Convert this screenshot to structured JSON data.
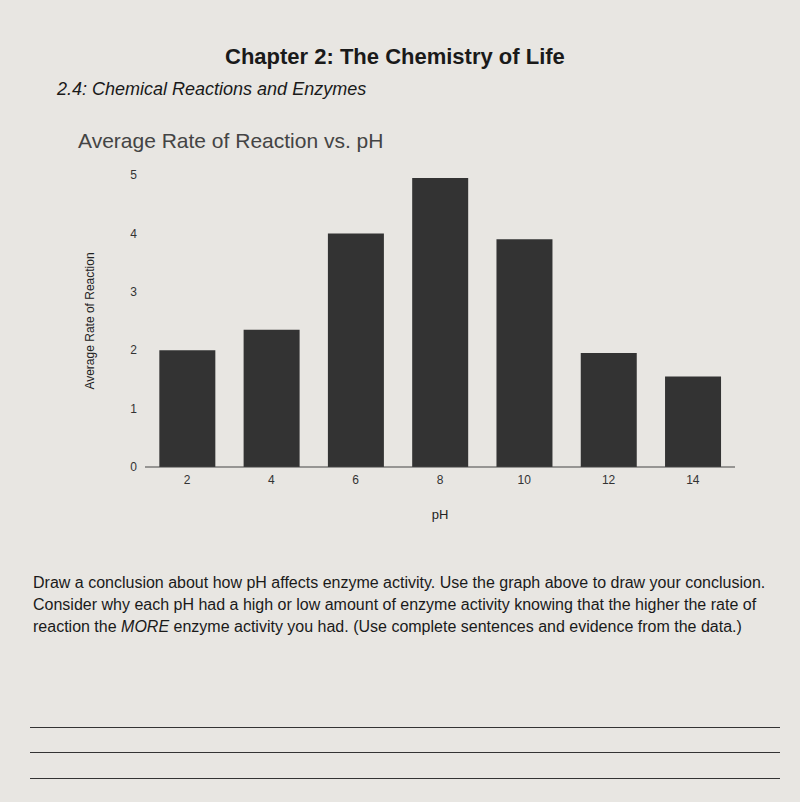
{
  "header": {
    "chapter": "Chapter 2: The Chemistry of Life",
    "section": "2.4: Chemical Reactions and Enzymes"
  },
  "chart_data": {
    "type": "bar",
    "title": "Average Rate of Reaction vs. pH",
    "x_label": "pH",
    "y_label": "Average Rate of Reaction",
    "categories": [
      "2",
      "4",
      "6",
      "8",
      "10",
      "12",
      "14"
    ],
    "values": [
      2.0,
      2.35,
      4.0,
      4.95,
      3.9,
      1.95,
      1.55
    ],
    "color": "#333333",
    "ylim": [
      0,
      5
    ],
    "yticks": [
      0,
      1,
      2,
      3,
      4,
      5
    ],
    "grid": false
  },
  "question": {
    "before": "Draw a conclusion about how pH affects enzyme activity. Use the graph above to draw your conclusion. Consider why each pH had a high or low amount of enzyme activity knowing that the higher the rate of reaction the ",
    "emphasis": "MORE",
    "after": " enzyme activity you had. (Use complete sentences and evidence from the data.)"
  }
}
